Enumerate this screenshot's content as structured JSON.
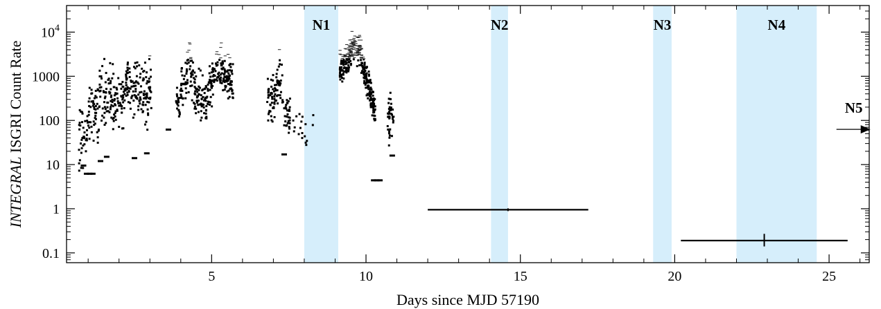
{
  "chart_data": {
    "type": "scatter",
    "title": "",
    "xlabel": "Days since MJD 57190",
    "ylabel": {
      "italic": "INTEGRAL",
      "rest": " ISGRI Count Rate"
    },
    "xlim": [
      0.3,
      26.3
    ],
    "ylim": [
      0.06,
      40000
    ],
    "yscale": "log",
    "grid": false,
    "legend": "none",
    "x_ticks": [
      5,
      10,
      15,
      20,
      25
    ],
    "x_tick_labels": [
      "5",
      "10",
      "15",
      "20",
      "25"
    ],
    "y_ticks": [
      0.1,
      1,
      10,
      100,
      1000,
      10000
    ],
    "y_tick_labels": [
      {
        "base": "0.1",
        "exp": ""
      },
      {
        "base": "1",
        "exp": ""
      },
      {
        "base": "10",
        "exp": ""
      },
      {
        "base": "100",
        "exp": ""
      },
      {
        "base": "1000",
        "exp": ""
      },
      {
        "base": "10",
        "exp": "4"
      }
    ],
    "shaded_bands": [
      {
        "label": "N1",
        "x0": 8.0,
        "x1": 9.1
      },
      {
        "label": "N2",
        "x0": 14.05,
        "x1": 14.6
      },
      {
        "label": "N3",
        "x0": 19.3,
        "x1": 19.9
      },
      {
        "label": "N4",
        "x0": 22.0,
        "x1": 24.6
      }
    ],
    "arrow_annotation": {
      "label": "N5",
      "x": 25.8,
      "y": 90
    },
    "band_color": "#d6eefb",
    "upper_limits": [
      {
        "x": 14.6,
        "xerr": 2.6,
        "y": 0.95
      },
      {
        "x": 22.9,
        "xerr": 2.7,
        "y": 0.19,
        "yerr_low": 0.14,
        "yerr_high": 0.27
      }
    ],
    "light_curve_segments": [
      {
        "x_start": 0.7,
        "x_end": 3.05,
        "profile": [
          [
            0.7,
            40
          ],
          [
            0.9,
            60
          ],
          [
            1.1,
            120
          ],
          [
            1.4,
            250
          ],
          [
            1.7,
            350
          ],
          [
            1.95,
            200
          ],
          [
            2.2,
            500
          ],
          [
            2.45,
            900
          ],
          [
            2.7,
            600
          ],
          [
            3.0,
            450
          ]
        ],
        "scatter_dex": 0.7,
        "points": 340
      },
      {
        "x_start": 3.85,
        "x_end": 5.7,
        "profile": [
          [
            3.85,
            200
          ],
          [
            4.1,
            600
          ],
          [
            4.3,
            1500
          ],
          [
            4.5,
            400
          ],
          [
            4.8,
            250
          ],
          [
            5.05,
            900
          ],
          [
            5.3,
            1500
          ],
          [
            5.55,
            1000
          ],
          [
            5.7,
            700
          ]
        ],
        "scatter_dex": 0.5,
        "points": 320
      },
      {
        "x_start": 6.8,
        "x_end": 7.55,
        "profile": [
          [
            6.8,
            200
          ],
          [
            7.0,
            300
          ],
          [
            7.2,
            1000
          ],
          [
            7.4,
            200
          ],
          [
            7.55,
            100
          ]
        ],
        "scatter_dex": 0.5,
        "points": 110
      },
      {
        "x_start": 7.6,
        "x_end": 8.3,
        "profile": [
          [
            7.6,
            100
          ],
          [
            7.9,
            70
          ],
          [
            8.2,
            45
          ],
          [
            8.3,
            80
          ]
        ],
        "scatter_dex": 0.3,
        "points": 18
      },
      {
        "x_start": 9.15,
        "x_end": 10.3,
        "profile": [
          [
            9.15,
            1500
          ],
          [
            9.4,
            2500
          ],
          [
            9.6,
            5000
          ],
          [
            9.8,
            4000
          ],
          [
            9.95,
            1200
          ],
          [
            10.1,
            600
          ],
          [
            10.3,
            150
          ]
        ],
        "scatter_dex": 0.35,
        "points": 330
      },
      {
        "x_start": 10.7,
        "x_end": 10.9,
        "profile": [
          [
            10.7,
            80
          ],
          [
            10.8,
            150
          ],
          [
            10.9,
            60
          ]
        ],
        "scatter_dex": 0.45,
        "points": 40
      }
    ],
    "low_points": [
      {
        "x": 0.95,
        "y": 6.2
      },
      {
        "x": 1.05,
        "y": 6.2
      },
      {
        "x": 1.15,
        "y": 6.2
      },
      {
        "x": 10.25,
        "y": 4.4
      },
      {
        "x": 10.35,
        "y": 4.4
      },
      {
        "x": 10.45,
        "y": 4.4
      },
      {
        "x": 0.85,
        "y": 9.5
      },
      {
        "x": 1.4,
        "y": 12
      },
      {
        "x": 1.6,
        "y": 15
      },
      {
        "x": 2.5,
        "y": 14
      },
      {
        "x": 2.9,
        "y": 18
      },
      {
        "x": 7.35,
        "y": 17
      },
      {
        "x": 10.85,
        "y": 16
      },
      {
        "x": 3.6,
        "y": 62
      }
    ]
  }
}
